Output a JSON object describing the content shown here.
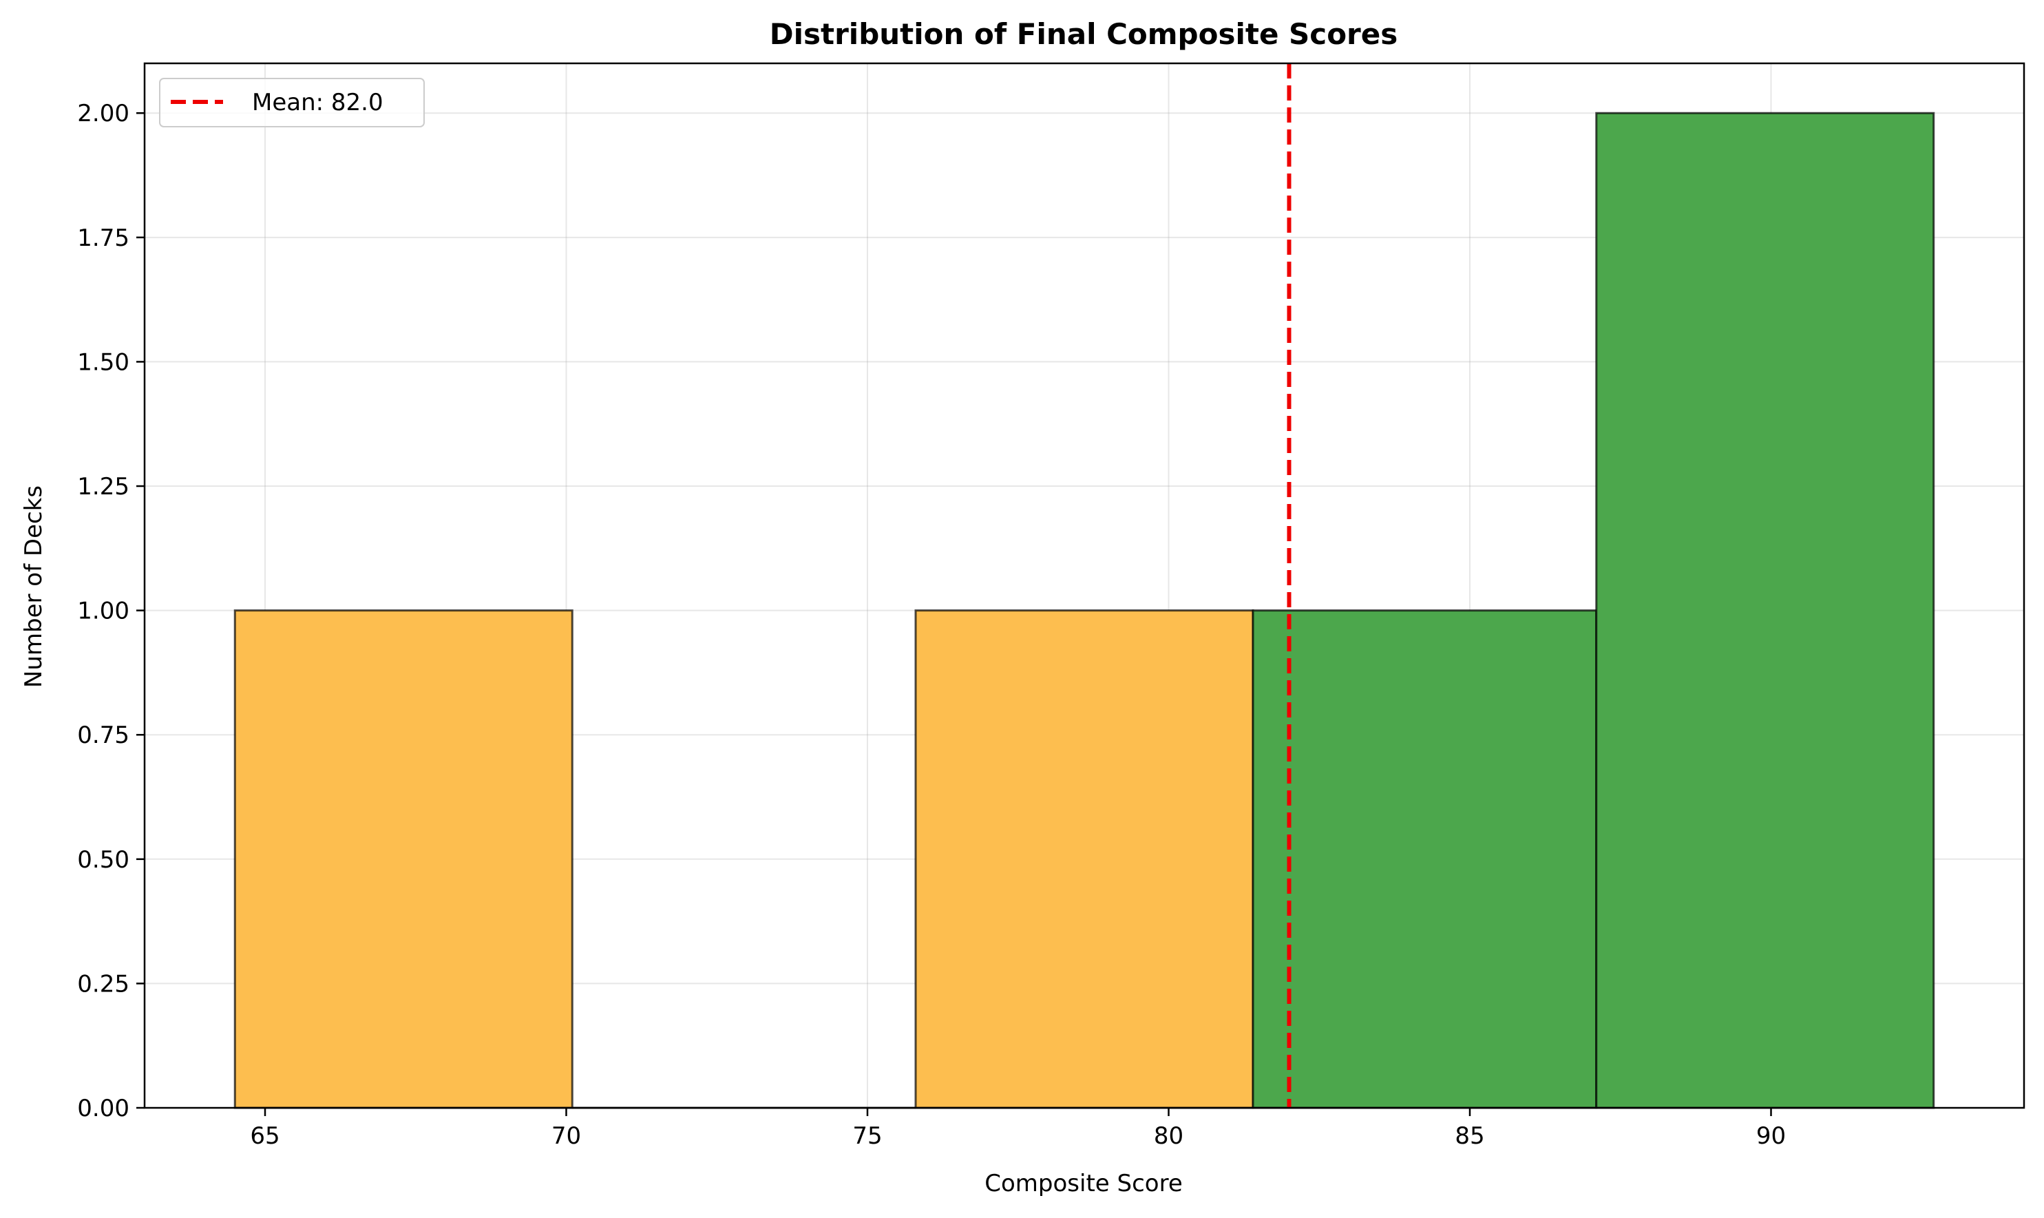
{
  "chart_data": {
    "type": "bar",
    "subtype": "histogram",
    "title": "Distribution of Final Composite Scores",
    "xlabel": "Composite Score",
    "ylabel": "Number of Decks",
    "xlim": [
      63.0,
      94.2
    ],
    "ylim": [
      0,
      2.1
    ],
    "xticks": [
      65,
      70,
      75,
      80,
      85,
      90
    ],
    "xtick_labels": [
      "65",
      "70",
      "75",
      "80",
      "85",
      "90"
    ],
    "yticks": [
      0,
      0.25,
      0.5,
      0.75,
      1.0,
      1.25,
      1.5,
      1.75,
      2.0
    ],
    "ytick_labels": [
      "0.00",
      "0.25",
      "0.50",
      "0.75",
      "1.00",
      "1.25",
      "1.50",
      "1.75",
      "2.00"
    ],
    "grid": true,
    "bins": [
      {
        "x0": 64.5,
        "x1": 70.1,
        "count": 1,
        "color": "#fdbe4f"
      },
      {
        "x0": 70.1,
        "x1": 75.8,
        "count": 0,
        "color": "#fdbe4f"
      },
      {
        "x0": 75.8,
        "x1": 81.4,
        "count": 1,
        "color": "#fdbe4f"
      },
      {
        "x0": 81.4,
        "x1": 87.1,
        "count": 1,
        "color": "#4ca74c"
      },
      {
        "x0": 87.1,
        "x1": 92.7,
        "count": 2,
        "color": "#4ca74c"
      }
    ],
    "mean_line": {
      "value": 82.0,
      "label": "Mean: 82.0",
      "color": "#ee0000"
    },
    "legend": {
      "position": "top-left",
      "entries": [
        "Mean: 82.0"
      ]
    }
  }
}
